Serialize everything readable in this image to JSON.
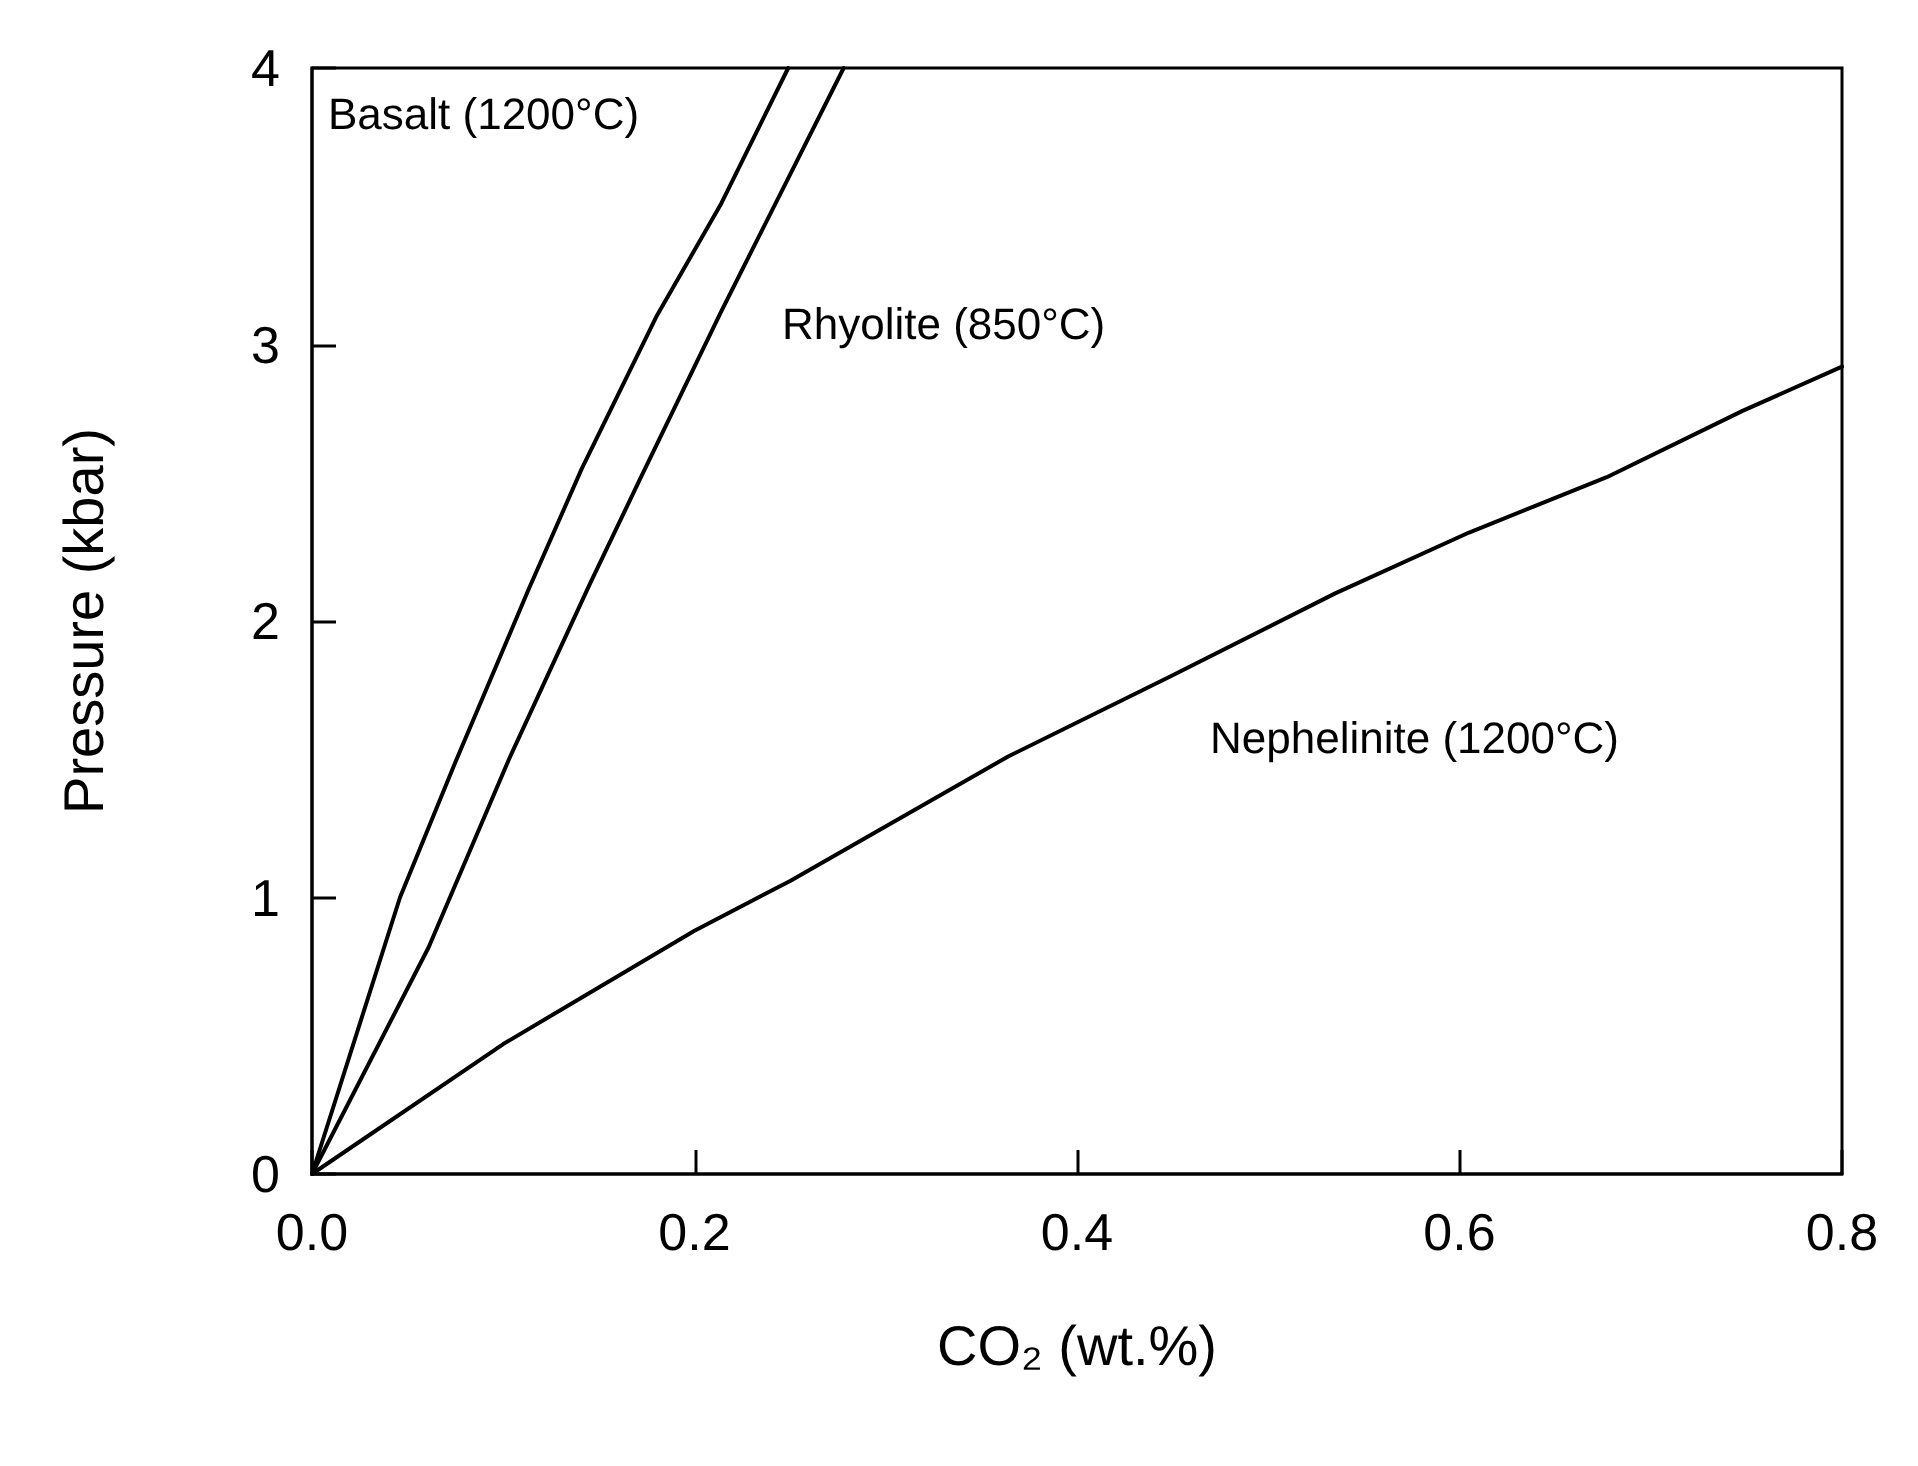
{
  "chart_data": {
    "type": "line",
    "xlabel": "CO₂ (wt.%)",
    "ylabel": "Pressure (kbar)",
    "xlim": [
      0,
      0.8
    ],
    "ylim": [
      0,
      4
    ],
    "xticks": [
      {
        "value": 0,
        "label": "0.0"
      },
      {
        "value": 0.2,
        "label": "0.2"
      },
      {
        "value": 0.4,
        "label": "0.4"
      },
      {
        "value": 0.6,
        "label": "0.6"
      },
      {
        "value": 0.8,
        "label": "0.8"
      }
    ],
    "yticks": [
      0,
      1,
      2,
      3,
      4
    ],
    "grid": false,
    "marker": "none",
    "line_style": "solid",
    "series": [
      {
        "color": "#000000",
        "x": [
          0,
          0.046,
          0.075,
          0.113,
          0.141,
          0.18,
          0.214,
          0.249
        ],
        "values": [
          0,
          1.0,
          1.49,
          2.11,
          2.55,
          3.1,
          3.51,
          4.0
        ]
      },
      {
        "color": "#000000",
        "x": [
          0,
          0.061,
          0.103,
          0.145,
          0.172,
          0.214,
          0.278
        ],
        "values": [
          0,
          0.82,
          1.5,
          2.13,
          2.52,
          3.12,
          4.0
        ]
      },
      {
        "color": "#000000",
        "x": [
          0,
          0.1,
          0.2,
          0.25,
          0.364,
          0.449,
          0.535,
          0.605,
          0.677,
          0.748,
          0.8
        ],
        "values": [
          0,
          0.47,
          0.88,
          1.06,
          1.51,
          1.8,
          2.1,
          2.32,
          2.52,
          2.76,
          2.92
        ]
      }
    ],
    "annotations": [
      "Basalt (1200°C)",
      "Rhyolite (850°C)",
      "Nephelinite (1200°C)"
    ]
  }
}
